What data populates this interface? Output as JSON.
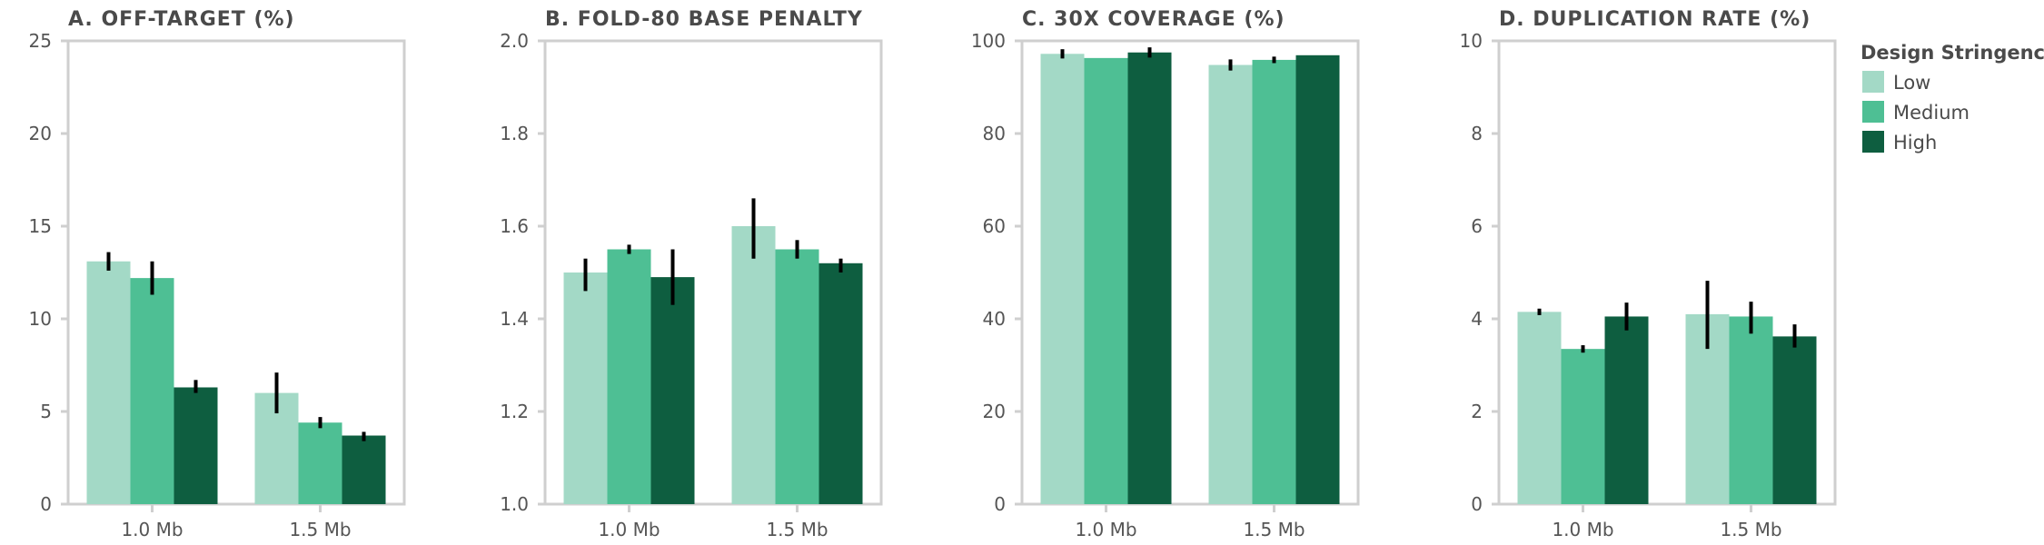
{
  "chart_data": [
    {
      "type": "bar",
      "title": "A. OFF-TARGET (%)",
      "categories": [
        "1.0 Mb",
        "1.5 Mb"
      ],
      "ylim": [
        0,
        25
      ],
      "yticks": [
        0,
        5,
        10,
        15,
        20,
        25
      ],
      "series": [
        {
          "name": "Low",
          "values": [
            13.1,
            6.0
          ],
          "err_low": [
            12.6,
            4.9
          ],
          "err_high": [
            13.6,
            7.1
          ]
        },
        {
          "name": "Medium",
          "values": [
            12.2,
            4.4
          ],
          "err_low": [
            11.3,
            4.1
          ],
          "err_high": [
            13.1,
            4.7
          ]
        },
        {
          "name": "High",
          "values": [
            6.3,
            3.7
          ],
          "err_low": [
            6.0,
            3.4
          ],
          "err_high": [
            6.7,
            3.9
          ]
        }
      ]
    },
    {
      "type": "bar",
      "title": "B. FOLD-80 BASE PENALTY",
      "categories": [
        "1.0 Mb",
        "1.5 Mb"
      ],
      "ylim": [
        1.0,
        2.0
      ],
      "yticks": [
        1.0,
        1.2,
        1.4,
        1.6,
        1.8,
        2.0
      ],
      "series": [
        {
          "name": "Low",
          "values": [
            1.5,
            1.6
          ],
          "err_low": [
            1.46,
            1.53
          ],
          "err_high": [
            1.53,
            1.66
          ]
        },
        {
          "name": "Medium",
          "values": [
            1.55,
            1.55
          ],
          "err_low": [
            1.54,
            1.53
          ],
          "err_high": [
            1.56,
            1.57
          ]
        },
        {
          "name": "High",
          "values": [
            1.49,
            1.52
          ],
          "err_low": [
            1.43,
            1.5
          ],
          "err_high": [
            1.55,
            1.53
          ]
        }
      ]
    },
    {
      "type": "bar",
      "title": "C. 30X COVERAGE (%)",
      "categories": [
        "1.0 Mb",
        "1.5 Mb"
      ],
      "ylim": [
        0,
        100
      ],
      "yticks": [
        0,
        20,
        40,
        60,
        80,
        100
      ],
      "series": [
        {
          "name": "Low",
          "values": [
            97.2,
            94.8
          ],
          "err_low": [
            96.2,
            93.6
          ],
          "err_high": [
            98.2,
            96.0
          ]
        },
        {
          "name": "Medium",
          "values": [
            96.3,
            95.9
          ],
          "err_low": [
            96.3,
            95.2
          ],
          "err_high": [
            96.3,
            96.6
          ]
        },
        {
          "name": "High",
          "values": [
            97.5,
            96.9
          ],
          "err_low": [
            96.4,
            96.9
          ],
          "err_high": [
            98.6,
            96.9
          ]
        }
      ]
    },
    {
      "type": "bar",
      "title": "D. DUPLICATION RATE (%)",
      "categories": [
        "1.0 Mb",
        "1.5 Mb"
      ],
      "ylim": [
        0,
        10
      ],
      "yticks": [
        0,
        2,
        4,
        6,
        8,
        10
      ],
      "series": [
        {
          "name": "Low",
          "values": [
            4.15,
            4.1
          ],
          "err_low": [
            4.08,
            3.35
          ],
          "err_high": [
            4.22,
            4.82
          ]
        },
        {
          "name": "Medium",
          "values": [
            3.35,
            4.05
          ],
          "err_low": [
            3.27,
            3.68
          ],
          "err_high": [
            3.43,
            4.37
          ]
        },
        {
          "name": "High",
          "values": [
            4.05,
            3.62
          ],
          "err_low": [
            3.75,
            3.38
          ],
          "err_high": [
            4.35,
            3.88
          ]
        }
      ]
    }
  ],
  "legend": {
    "title": "Design Stringency",
    "placement": "top-right",
    "items": [
      {
        "label": "Low",
        "color": "#a3d9c6"
      },
      {
        "label": "Medium",
        "color": "#4ebf94"
      },
      {
        "label": "High",
        "color": "#0e5e40"
      }
    ]
  },
  "colors": {
    "Low": "#a3d9c6",
    "Medium": "#4ebf94",
    "High": "#0e5e40",
    "axis": "#cfcfcf",
    "error_bar": "#000000"
  }
}
